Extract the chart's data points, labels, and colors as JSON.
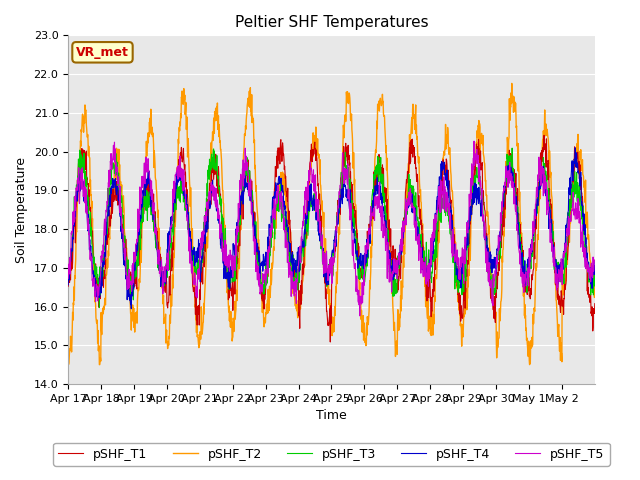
{
  "title": "Peltier SHF Temperatures",
  "xlabel": "Time",
  "ylabel": "Soil Temperature",
  "ylim": [
    14.0,
    23.0
  ],
  "yticks": [
    14.0,
    15.0,
    16.0,
    17.0,
    18.0,
    19.0,
    20.0,
    21.0,
    22.0,
    23.0
  ],
  "line_colors": {
    "T1": "#cc0000",
    "T2": "#ff9900",
    "T3": "#00cc00",
    "T4": "#0000cc",
    "T5": "#cc00cc"
  },
  "line_labels": {
    "T1": "pSHF_T1",
    "T2": "pSHF_T2",
    "T3": "pSHF_T3",
    "T4": "pSHF_T4",
    "T5": "pSHF_T5"
  },
  "annotation_text": "VR_met",
  "annotation_bbox_fc": "#ffffcc",
  "annotation_bbox_ec": "#996600",
  "fig_facecolor": "#ffffff",
  "plot_bg_color": "#e8e8e8",
  "n_days": 16,
  "points_per_day": 96,
  "base_temp": 18.0,
  "xtick_labels": [
    "Apr 17",
    "Apr 18",
    "Apr 19",
    "Apr 20",
    "Apr 21",
    "Apr 22",
    "Apr 23",
    "Apr 24",
    "Apr 25",
    "Apr 26",
    "Apr 27",
    "Apr 28",
    "Apr 29",
    "Apr 30",
    "May 1",
    "May 2"
  ],
  "title_fontsize": 11,
  "axis_label_fontsize": 9,
  "tick_fontsize": 8,
  "legend_fontsize": 9,
  "grid_color": "#ffffff",
  "grid_linewidth": 0.8
}
